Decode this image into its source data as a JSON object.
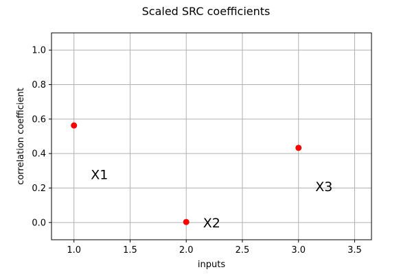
{
  "chart_data": {
    "type": "scatter",
    "title": "Scaled SRC coefficients",
    "xlabel": "inputs",
    "ylabel": "correlation coefficient",
    "xlim": [
      0.8,
      3.65
    ],
    "ylim": [
      -0.1,
      1.1
    ],
    "xticks": [
      1.0,
      1.5,
      2.0,
      2.5,
      3.0,
      3.5
    ],
    "xtick_labels": [
      "1.0",
      "1.5",
      "2.0",
      "2.5",
      "3.0",
      "3.5"
    ],
    "yticks": [
      0.0,
      0.2,
      0.4,
      0.6,
      0.8,
      1.0
    ],
    "ytick_labels": [
      "0.0",
      "0.2",
      "0.4",
      "0.6",
      "0.8",
      "1.0"
    ],
    "grid": true,
    "series": [
      {
        "color": "#ff0000",
        "marker": "circle",
        "x": [
          1.0,
          2.0,
          3.0
        ],
        "y": [
          0.563,
          0.003,
          0.433
        ]
      }
    ],
    "annotations": [
      {
        "text": "X1",
        "x": 1.15,
        "y": 0.28
      },
      {
        "text": "X2",
        "x": 2.15,
        "y": 0.0
      },
      {
        "text": "X3",
        "x": 3.15,
        "y": 0.21
      }
    ]
  }
}
